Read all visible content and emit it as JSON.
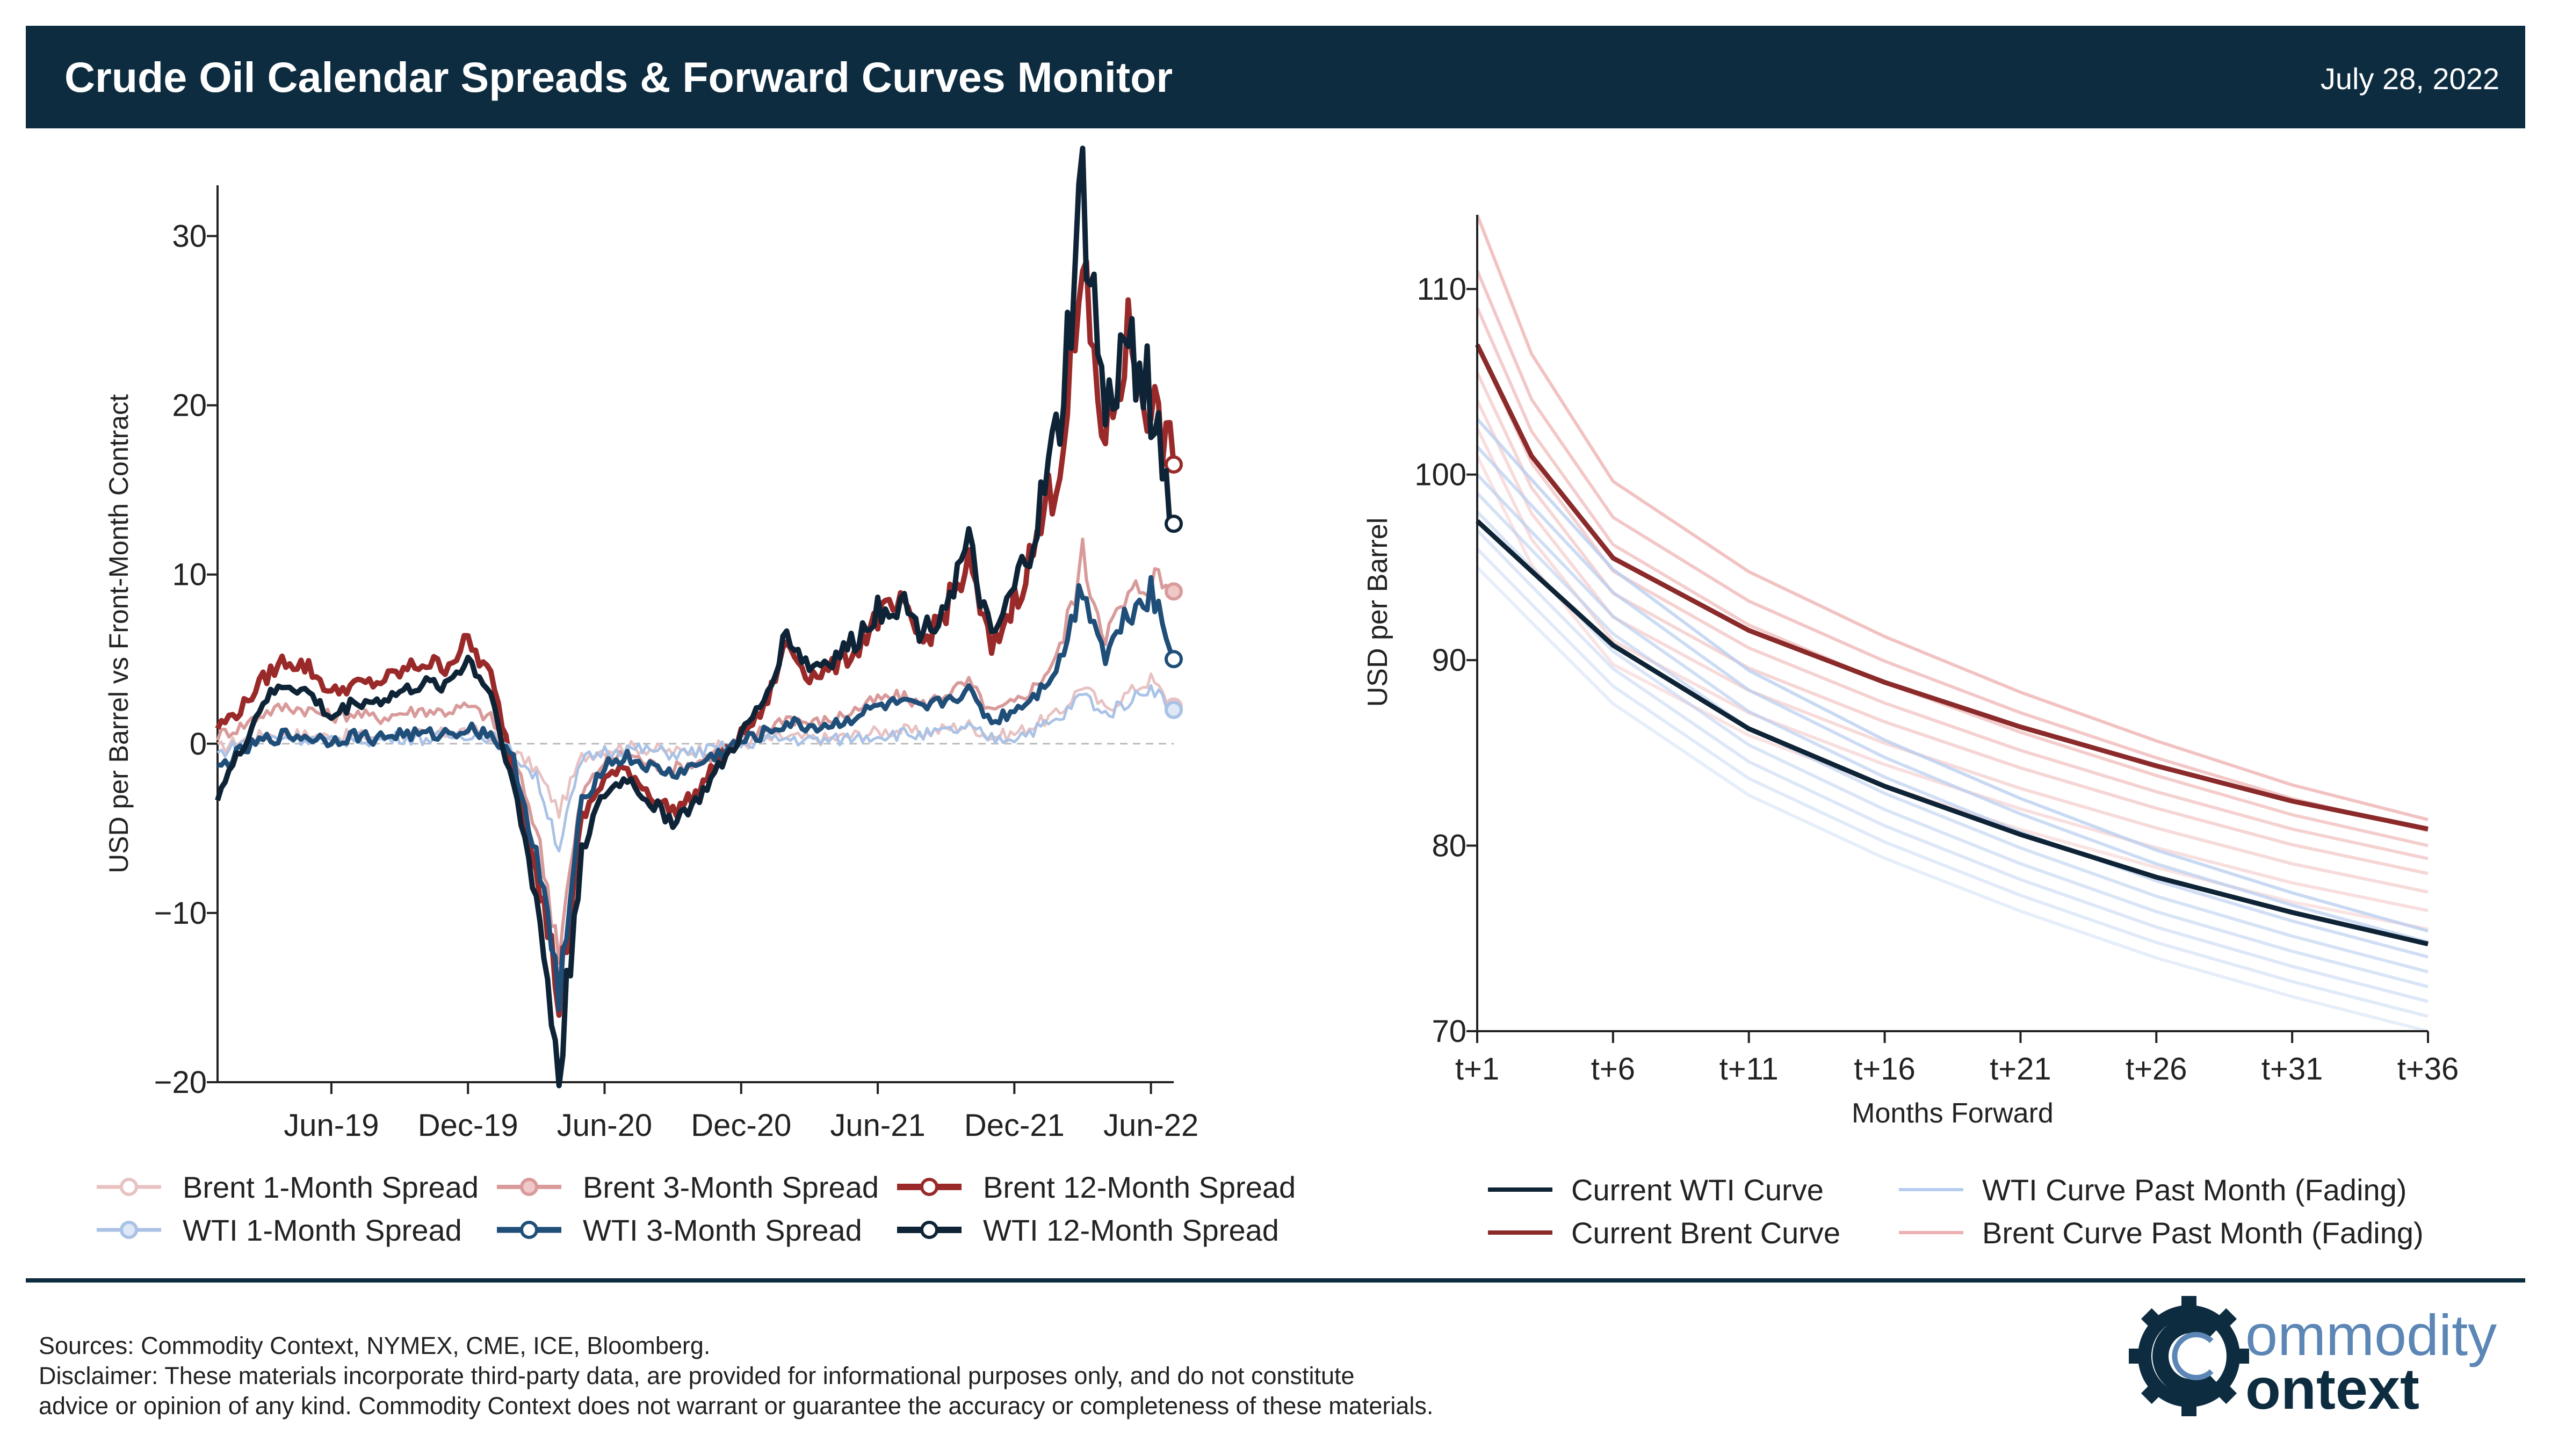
{
  "header": {
    "title": "Crude Oil Calendar Spreads & Forward Curves Monitor",
    "date": "July 28, 2022"
  },
  "colors": {
    "header_bg": "#0d2c40",
    "brent_1m": "#e8c2c2",
    "brent_3m": "#d99a9a",
    "brent_12m": "#9a2a2a",
    "wti_1m": "#a9c2e6",
    "wti_3m": "#1f4e79",
    "wti_12m": "#0e2436",
    "wti_curve": "#0e2436",
    "brent_curve": "#8b2a2a",
    "wti_fade": "#b7cdf0",
    "brent_fade": "#eeb0b0"
  },
  "chart_data": [
    {
      "type": "line",
      "title": "",
      "xlabel": "",
      "ylabel": "USD per Barrel vs Front-Month Contract",
      "ylim": [
        -20,
        33
      ],
      "yticks": [
        "30",
        "20",
        "10",
        "0",
        "−10",
        "−20"
      ],
      "xticks": [
        "Jun-19",
        "Dec-19",
        "Jun-20",
        "Dec-20",
        "Jun-21",
        "Dec-21",
        "Jun-22"
      ],
      "x": [
        "2019-01",
        "2019-02",
        "2019-03",
        "2019-04",
        "2019-05",
        "2019-06",
        "2019-07",
        "2019-08",
        "2019-09",
        "2019-10",
        "2019-11",
        "2019-12",
        "2020-01",
        "2020-02",
        "2020-03",
        "2020-04",
        "2020-05",
        "2020-06",
        "2020-07",
        "2020-08",
        "2020-09",
        "2020-10",
        "2020-11",
        "2020-12",
        "2021-01",
        "2021-02",
        "2021-03",
        "2021-04",
        "2021-05",
        "2021-06",
        "2021-07",
        "2021-08",
        "2021-09",
        "2021-10",
        "2021-11",
        "2021-12",
        "2022-01",
        "2022-02",
        "2022-03",
        "2022-04",
        "2022-05",
        "2022-06",
        "2022-07"
      ],
      "series": [
        {
          "name": "Brent 1-Month Spread",
          "values": [
            -0.3,
            0.2,
            0.5,
            0.6,
            0.5,
            0.4,
            0.5,
            0.4,
            0.6,
            0.5,
            0.6,
            0.8,
            0.5,
            -0.5,
            -1.5,
            -4.0,
            -0.8,
            -0.3,
            -0.2,
            -0.3,
            -0.5,
            -0.4,
            -0.2,
            0.0,
            0.2,
            0.4,
            0.3,
            0.3,
            0.5,
            0.7,
            0.8,
            0.6,
            0.9,
            1.1,
            0.4,
            0.6,
            1.2,
            1.8,
            3.5,
            2.0,
            3.0,
            3.8,
            2.2
          ]
        },
        {
          "name": "Brent 3-Month Spread",
          "values": [
            0.5,
            1.0,
            1.8,
            2.2,
            2.0,
            1.6,
            1.8,
            1.5,
            1.8,
            2.0,
            1.9,
            2.2,
            1.5,
            -0.8,
            -5.0,
            -12.0,
            -3.0,
            -1.0,
            -0.6,
            -1.2,
            -1.5,
            -1.1,
            -0.5,
            0.2,
            0.8,
            1.6,
            1.2,
            1.4,
            2.0,
            2.6,
            2.8,
            2.3,
            3.0,
            3.6,
            1.8,
            2.4,
            3.5,
            5.5,
            11.0,
            6.5,
            8.5,
            10.0,
            9.0
          ]
        },
        {
          "name": "Brent 12-Month Spread",
          "values": [
            1.0,
            2.0,
            3.8,
            5.0,
            4.5,
            3.0,
            3.5,
            3.6,
            4.2,
            4.8,
            4.6,
            6.0,
            4.0,
            -1.5,
            -7.0,
            -15.0,
            -4.5,
            -2.0,
            -1.5,
            -3.0,
            -4.0,
            -3.0,
            -1.0,
            0.5,
            2.0,
            6.0,
            4.0,
            4.5,
            5.5,
            7.5,
            8.0,
            6.0,
            8.0,
            10.5,
            5.5,
            8.5,
            12.0,
            17.0,
            27.0,
            18.0,
            24.0,
            20.0,
            16.5
          ]
        },
        {
          "name": "WTI 1-Month Spread",
          "values": [
            -0.6,
            0.0,
            0.3,
            0.4,
            0.3,
            0.1,
            0.3,
            0.2,
            0.4,
            0.3,
            0.4,
            0.6,
            0.4,
            -0.6,
            -2.0,
            -6.0,
            -1.0,
            -0.4,
            -0.3,
            -0.4,
            -0.6,
            -0.5,
            -0.3,
            0.0,
            0.2,
            0.3,
            0.2,
            0.2,
            0.4,
            0.5,
            0.6,
            0.5,
            0.7,
            0.9,
            0.3,
            0.4,
            0.9,
            1.4,
            3.0,
            1.7,
            2.5,
            3.4,
            2.0
          ]
        },
        {
          "name": "WTI 3-Month Spread",
          "values": [
            -1.5,
            -0.5,
            0.2,
            0.5,
            0.4,
            0.2,
            0.5,
            0.3,
            0.6,
            0.5,
            0.6,
            0.9,
            0.6,
            -1.0,
            -6.5,
            -15.0,
            -3.5,
            -1.2,
            -0.8,
            -1.4,
            -1.8,
            -1.3,
            -0.6,
            0.1,
            0.6,
            1.2,
            1.0,
            1.1,
            1.6,
            2.2,
            2.4,
            2.0,
            2.6,
            3.1,
            1.3,
            2.0,
            3.0,
            4.8,
            9.5,
            5.2,
            7.8,
            9.2,
            5.0
          ]
        },
        {
          "name": "WTI 12-Month Spread",
          "values": [
            -3.0,
            -0.5,
            2.5,
            3.5,
            3.0,
            1.5,
            2.5,
            2.5,
            3.0,
            3.5,
            3.5,
            5.0,
            3.0,
            -2.5,
            -9.0,
            -19.5,
            -6.0,
            -3.0,
            -2.0,
            -3.5,
            -4.5,
            -3.5,
            -1.5,
            0.5,
            2.5,
            6.5,
            4.5,
            5.0,
            6.0,
            8.0,
            8.5,
            6.5,
            8.5,
            11.5,
            6.0,
            9.0,
            13.0,
            19.0,
            32.5,
            19.0,
            24.0,
            20.5,
            13.0
          ]
        }
      ]
    },
    {
      "type": "line",
      "title": "",
      "xlabel": "Months Forward",
      "ylabel": "USD per Barrel",
      "ylim": [
        70,
        114
      ],
      "yticks": [
        "110",
        "100",
        "90",
        "80",
        "70"
      ],
      "xticks": [
        "t+1",
        "t+6",
        "t+11",
        "t+16",
        "t+21",
        "t+26",
        "t+31",
        "t+36"
      ],
      "x": [
        "t+1",
        "t+3",
        "t+6",
        "t+11",
        "t+16",
        "t+21",
        "t+26",
        "t+31",
        "t+36"
      ],
      "series": [
        {
          "name": "Current WTI Curve",
          "values": [
            97.5,
            94.8,
            90.8,
            86.3,
            83.2,
            80.6,
            78.3,
            76.4,
            74.7
          ]
        },
        {
          "name": "Current Brent Curve",
          "values": [
            107.0,
            101.0,
            95.5,
            91.6,
            88.8,
            86.4,
            84.3,
            82.4,
            80.9
          ]
        }
      ],
      "fading_series": {
        "wti_fade_starts": [
          95.0,
          96.0,
          97.0,
          98.0,
          99.0,
          100.0,
          101.5,
          103.0
        ],
        "wti_fade_ends": [
          70.0,
          70.8,
          71.6,
          72.4,
          73.2,
          74.0,
          74.8,
          75.4
        ],
        "brent_fade_starts": [
          101.0,
          102.5,
          104.0,
          105.5,
          107.0,
          109.0,
          111.0,
          114.0
        ],
        "brent_fade_ends": [
          75.5,
          76.5,
          77.5,
          78.5,
          79.3,
          80.0,
          80.8,
          81.4
        ]
      }
    }
  ],
  "legend_left": [
    "Brent 1-Month Spread",
    "Brent 3-Month Spread",
    "Brent 12-Month Spread",
    "WTI 1-Month Spread",
    "WTI 3-Month Spread",
    "WTI 12-Month Spread"
  ],
  "legend_right": [
    "Current WTI Curve",
    "WTI Curve Past Month (Fading)",
    "Current Brent Curve",
    "Brent Curve Past Month (Fading)"
  ],
  "footer": {
    "sources": "Sources: Commodity Context, NYMEX, CME, ICE, Bloomberg.",
    "disclaimer_1": "Disclaimer: These materials incorporate third-party data, are provided for informational purposes only, and do not constitute",
    "disclaimer_2": "advice or opinion of any kind. Commodity Context does not warrant or guarantee the accuracy or completeness of these materials."
  },
  "logo": {
    "word_1": "ommodity",
    "word_2": "ontext",
    "icon": "gear-c-icon"
  }
}
